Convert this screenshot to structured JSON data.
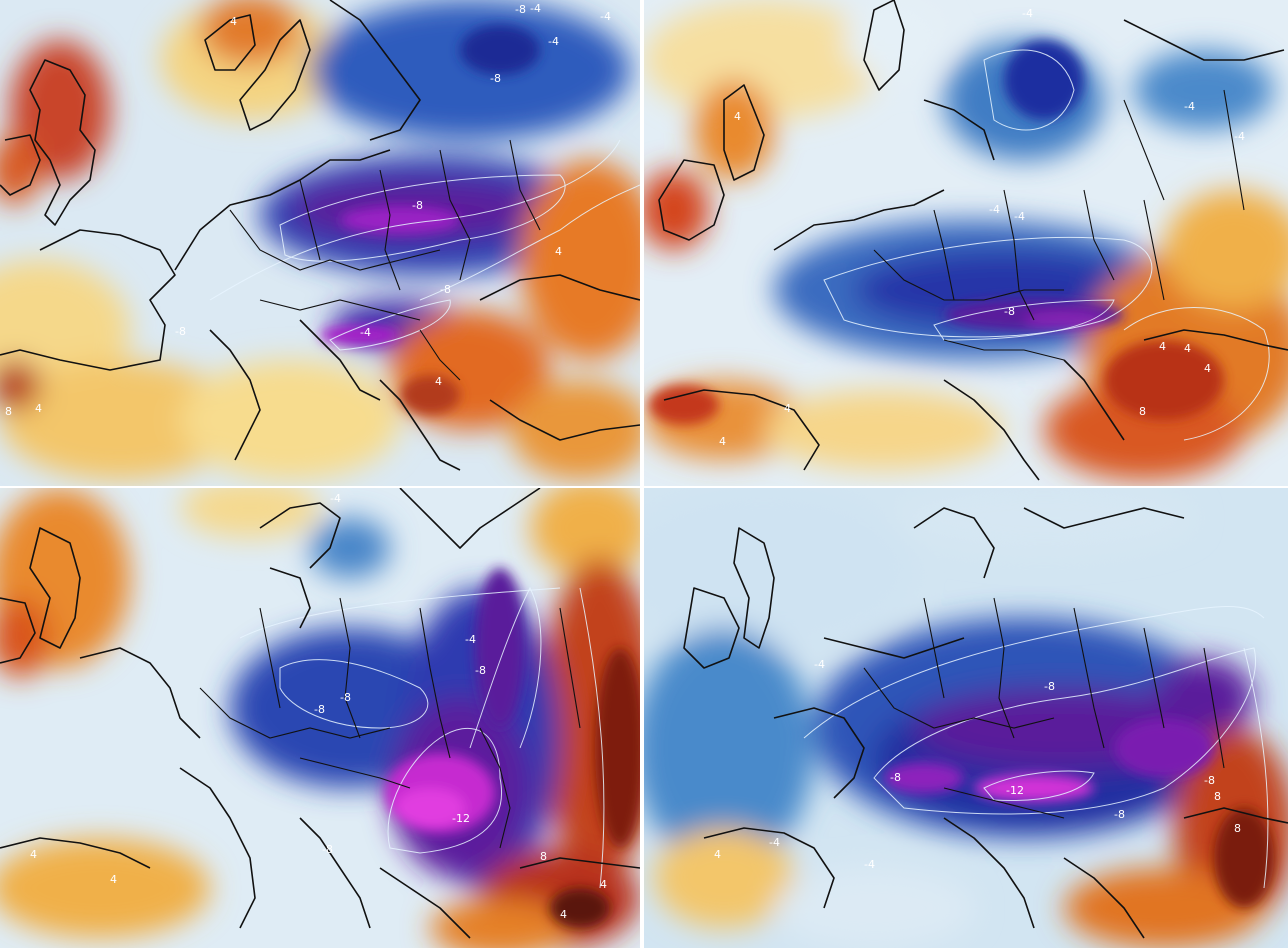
{
  "panels": [
    {
      "id": "panel-1",
      "contour_labels": [
        "-8",
        "-4",
        "-4",
        "-8",
        "-8",
        "-8",
        "-4",
        "-8",
        "4",
        "4",
        "8",
        "4",
        "4",
        "-4"
      ]
    },
    {
      "id": "panel-2",
      "contour_labels": [
        "-4",
        "-4",
        "-4",
        "4",
        "-4",
        "-4",
        "-8",
        "4",
        "4",
        "8",
        "4",
        "4",
        "4"
      ]
    },
    {
      "id": "panel-3",
      "contour_labels": [
        "-4",
        "-4",
        "-8",
        "-8",
        "-8",
        "-12",
        "-8",
        "4",
        "4",
        "8",
        "4",
        "4"
      ]
    },
    {
      "id": "panel-4",
      "contour_labels": [
        "-4",
        "-4",
        "-8",
        "-8",
        "-8",
        "-12",
        "-8",
        "4",
        "8",
        "8",
        "-4"
      ]
    }
  ],
  "colors": {
    "warm_dark": "#7a1a08",
    "warm": "#d9531e",
    "orange": "#f0a52a",
    "yellow": "#f7d87e",
    "neutral": "#f4f6f8",
    "light_blue": "#b9d8ee",
    "blue": "#3d86c8",
    "dark_blue": "#1c2f9c",
    "purple": "#6a1a9a",
    "magenta": "#e033d9",
    "coastline": "#111111",
    "contour_line": "#e8f4ff"
  }
}
